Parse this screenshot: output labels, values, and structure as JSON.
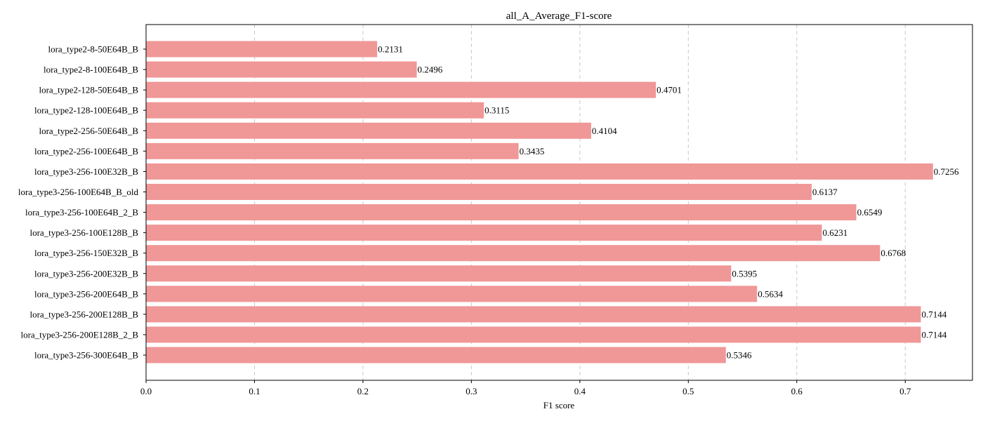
{
  "chart_data": {
    "type": "bar",
    "orientation": "horizontal",
    "title": "all_A_Average_F1-score",
    "xlabel": "F1 score",
    "ylabel": "",
    "xlim": [
      0,
      0.762
    ],
    "xticks": [
      "0.0",
      "0.1",
      "0.2",
      "0.3",
      "0.4",
      "0.5",
      "0.6",
      "0.7"
    ],
    "grid": "vertical dashed",
    "bar_color": "#f09797",
    "categories": [
      "lora_type2-8-50E64B_B",
      "lora_type2-8-100E64B_B",
      "lora_type2-128-50E64B_B",
      "lora_type2-128-100E64B_B",
      "lora_type2-256-50E64B_B",
      "lora_type2-256-100E64B_B",
      "lora_type3-256-100E32B_B",
      "lora_type3-256-100E64B_B_old",
      "lora_type3-256-100E64B_2_B",
      "lora_type3-256-100E128B_B",
      "lora_type3-256-150E32B_B",
      "lora_type3-256-200E32B_B",
      "lora_type3-256-200E64B_B",
      "lora_type3-256-200E128B_B",
      "lora_type3-256-200E128B_2_B",
      "lora_type3-256-300E64B_B"
    ],
    "values": [
      0.2131,
      0.2496,
      0.4701,
      0.3115,
      0.4104,
      0.3435,
      0.7256,
      0.6137,
      0.6549,
      0.6231,
      0.6768,
      0.5395,
      0.5634,
      0.7144,
      0.7144,
      0.5346
    ],
    "value_labels": [
      "0.2131",
      "0.2496",
      "0.4701",
      "0.3115",
      "0.4104",
      "0.3435",
      "0.7256",
      "0.6137",
      "0.6549",
      "0.6231",
      "0.6768",
      "0.5395",
      "0.5634",
      "0.7144",
      "0.7144",
      "0.5346"
    ]
  }
}
